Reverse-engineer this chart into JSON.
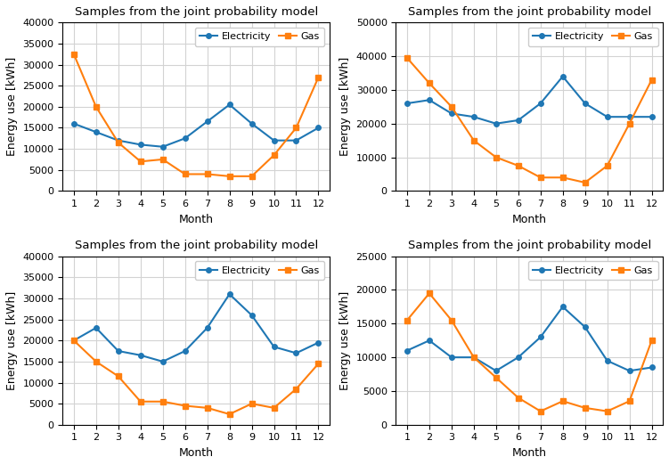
{
  "title": "Samples from the joint probability model",
  "xlabel": "Month",
  "ylabel": "Energy use [kWh]",
  "elec_color": "#1f77b4",
  "gas_color": "#ff7f0e",
  "months": [
    1,
    2,
    3,
    4,
    5,
    6,
    7,
    8,
    9,
    10,
    11,
    12
  ],
  "subplots": [
    {
      "elec": [
        16000,
        14000,
        12000,
        11000,
        10500,
        12500,
        16500,
        20500,
        16000,
        12000,
        12000,
        15000
      ],
      "gas": [
        32500,
        20000,
        11500,
        7000,
        7500,
        4000,
        4000,
        3500,
        3500,
        8500,
        15000,
        27000
      ],
      "ylim": [
        0,
        40000
      ],
      "yticks": [
        0,
        5000,
        10000,
        15000,
        20000,
        25000,
        30000,
        35000,
        40000
      ]
    },
    {
      "elec": [
        26000,
        27000,
        23000,
        22000,
        20000,
        21000,
        26000,
        34000,
        26000,
        22000,
        22000,
        22000
      ],
      "gas": [
        39500,
        32000,
        25000,
        15000,
        10000,
        7500,
        4000,
        4000,
        2500,
        7500,
        20000,
        33000
      ],
      "ylim": [
        0,
        50000
      ],
      "yticks": [
        0,
        10000,
        20000,
        30000,
        40000,
        50000
      ]
    },
    {
      "elec": [
        20000,
        23000,
        17500,
        16500,
        15000,
        17500,
        23000,
        31000,
        26000,
        18500,
        17000,
        19500
      ],
      "gas": [
        20000,
        15000,
        11500,
        5500,
        5500,
        4500,
        4000,
        2500,
        5000,
        4000,
        8500,
        14500
      ],
      "ylim": [
        0,
        40000
      ],
      "yticks": [
        0,
        5000,
        10000,
        15000,
        20000,
        25000,
        30000,
        35000,
        40000
      ]
    },
    {
      "elec": [
        11000,
        12500,
        10000,
        10000,
        8000,
        10000,
        13000,
        17500,
        14500,
        9500,
        8000,
        8500
      ],
      "gas": [
        15500,
        19500,
        15500,
        10000,
        7000,
        4000,
        2000,
        3500,
        2500,
        2000,
        3500,
        12500
      ],
      "ylim": [
        0,
        25000
      ],
      "yticks": [
        0,
        5000,
        10000,
        15000,
        20000,
        25000
      ]
    }
  ]
}
